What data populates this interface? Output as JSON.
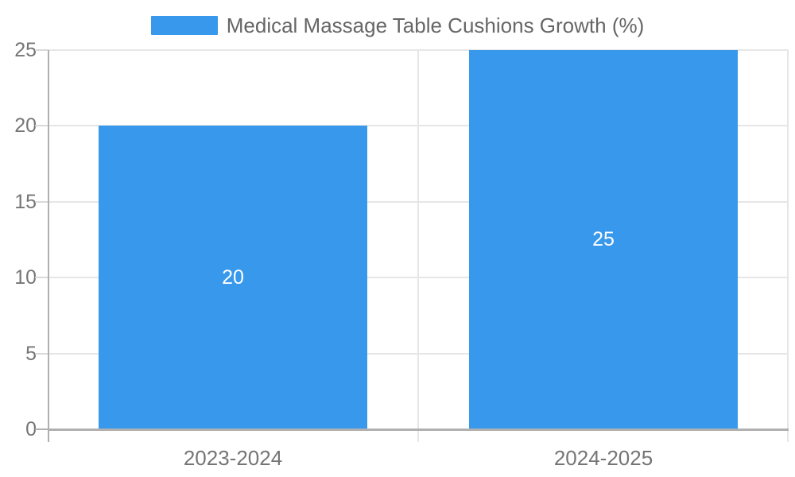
{
  "chart_data": {
    "type": "bar",
    "legend_label": "Medical Massage Table Cushions Growth (%)",
    "legend_position": "top",
    "categories": [
      "2023-2024",
      "2024-2025"
    ],
    "series": [
      {
        "name": "Medical Massage Table Cushions Growth (%)",
        "values": [
          20,
          25
        ]
      }
    ],
    "values": [
      20,
      25
    ],
    "data_labels": [
      "20",
      "25"
    ],
    "title": "",
    "xlabel": "",
    "ylabel": "",
    "ylim": [
      0,
      25
    ],
    "yticks": [
      0,
      5,
      10,
      15,
      20,
      25
    ],
    "grid": true,
    "bar_width_fraction": 0.725,
    "colors": {
      "bar": "#3898ec",
      "grid": "#e6e6e6",
      "axis": "#b0b0b0",
      "tick": "#d9d9d9",
      "tick_label": "#757575",
      "legend_text": "#666666",
      "data_label": "#ffffff",
      "background": "#ffffff"
    }
  }
}
